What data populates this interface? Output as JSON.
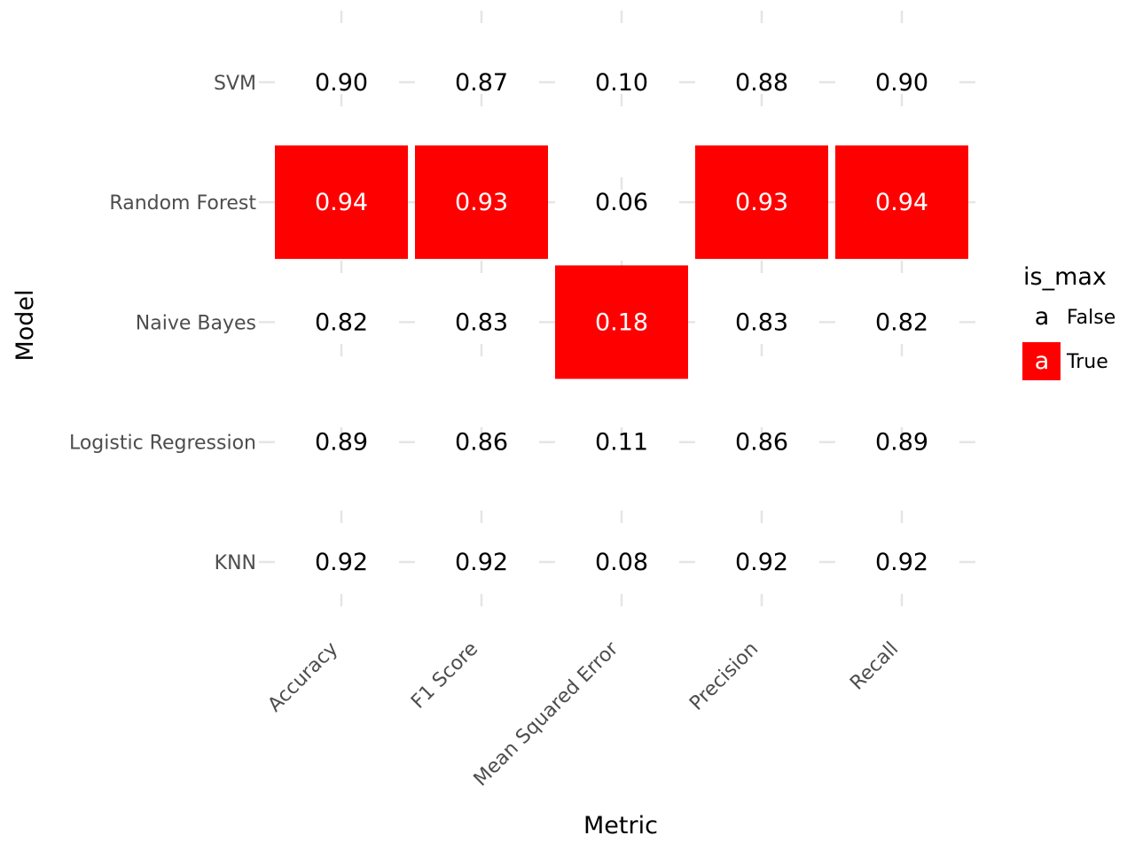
{
  "chart_data": {
    "type": "heatmap",
    "xlabel": "Metric",
    "ylabel": "Model",
    "x_categories": [
      "Accuracy",
      "F1 Score",
      "Mean Squared Error",
      "Precision",
      "Recall"
    ],
    "y_categories": [
      "KNN",
      "Logistic Regression",
      "Naive Bayes",
      "Random Forest",
      "SVM"
    ],
    "values": [
      [
        0.92,
        0.92,
        0.08,
        0.92,
        0.92
      ],
      [
        0.89,
        0.86,
        0.11,
        0.86,
        0.89
      ],
      [
        0.82,
        0.83,
        0.18,
        0.83,
        0.82
      ],
      [
        0.94,
        0.93,
        0.06,
        0.93,
        0.94
      ],
      [
        0.9,
        0.87,
        0.1,
        0.88,
        0.9
      ]
    ],
    "is_max": [
      [
        false,
        false,
        false,
        false,
        false
      ],
      [
        false,
        false,
        false,
        false,
        false
      ],
      [
        false,
        false,
        true,
        false,
        false
      ],
      [
        true,
        true,
        false,
        true,
        true
      ],
      [
        false,
        false,
        false,
        false,
        false
      ]
    ],
    "fill_colors": {
      "True": "#ff0000",
      "False": "#ffffff"
    },
    "text_colors": {
      "True": "#ffffff",
      "False": "#000000"
    },
    "legend": {
      "title": "is_max",
      "placement": "right",
      "entries": [
        {
          "label": "False",
          "key": "a"
        },
        {
          "label": "True",
          "key": "a"
        }
      ]
    },
    "grid": true
  }
}
